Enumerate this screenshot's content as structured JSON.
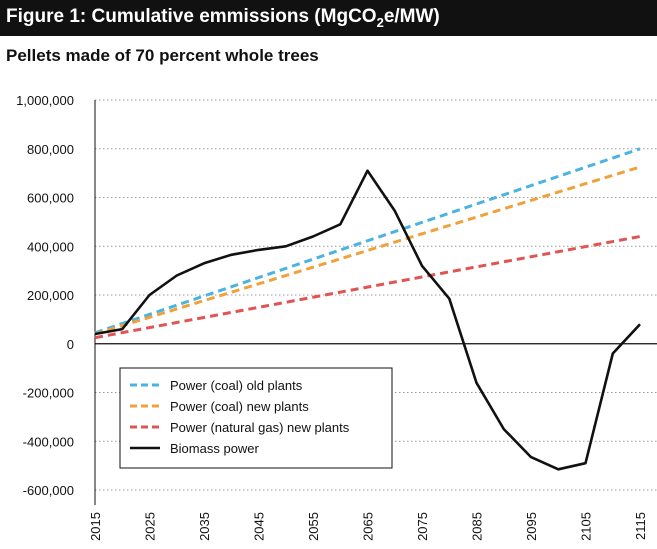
{
  "figure": {
    "title_prefix": "Figure 1: Cumulative emmissions (MgCO",
    "title_sub": "2",
    "title_suffix": "e/MW)",
    "subtitle": "Pellets made of 70 percent whole trees"
  },
  "chart_data": {
    "type": "line",
    "title": "Figure 1: Cumulative emmissions (MgCO2e/MW)",
    "subtitle": "Pellets made of 70 percent whole trees",
    "xlabel": "",
    "ylabel": "",
    "xlim": [
      2015,
      2115
    ],
    "ylim": [
      -600000,
      1000000
    ],
    "x_ticks": [
      "2015",
      "2025",
      "2035",
      "2045",
      "2055",
      "2065",
      "2075",
      "2085",
      "2095",
      "2105",
      "2115"
    ],
    "y_ticks": [
      "1,000,000",
      "800,000",
      "600,000",
      "400,000",
      "200,000",
      "0",
      "-200,000",
      "-400,000",
      "-600,000"
    ],
    "y_tick_values": [
      1000000,
      800000,
      600000,
      400000,
      200000,
      0,
      -200000,
      -400000,
      -600000
    ],
    "grid": "horizontal dotted",
    "legend_position": "bottom-left",
    "series": [
      {
        "name": "Power (coal) old plants",
        "color": "#4bb3e0",
        "style": "dashed",
        "x": [
          2015,
          2115
        ],
        "y": [
          45000,
          800000
        ]
      },
      {
        "name": "Power (coal) new plants",
        "color": "#f0a23a",
        "style": "dashed",
        "x": [
          2015,
          2115
        ],
        "y": [
          40000,
          725000
        ]
      },
      {
        "name": "Power (natural gas) new plants",
        "color": "#e05454",
        "style": "dashed",
        "x": [
          2015,
          2115
        ],
        "y": [
          25000,
          440000
        ]
      },
      {
        "name": "Biomass power",
        "color": "#111111",
        "style": "solid",
        "x": [
          2015,
          2020,
          2025,
          2030,
          2035,
          2040,
          2045,
          2050,
          2055,
          2060,
          2065,
          2070,
          2075,
          2080,
          2085,
          2090,
          2095,
          2100,
          2105,
          2110,
          2115
        ],
        "y": [
          40000,
          60000,
          200000,
          280000,
          330000,
          365000,
          385000,
          400000,
          440000,
          490000,
          710000,
          545000,
          320000,
          185000,
          -160000,
          -350000,
          -465000,
          -515000,
          -490000,
          -40000,
          80000
        ]
      }
    ]
  }
}
